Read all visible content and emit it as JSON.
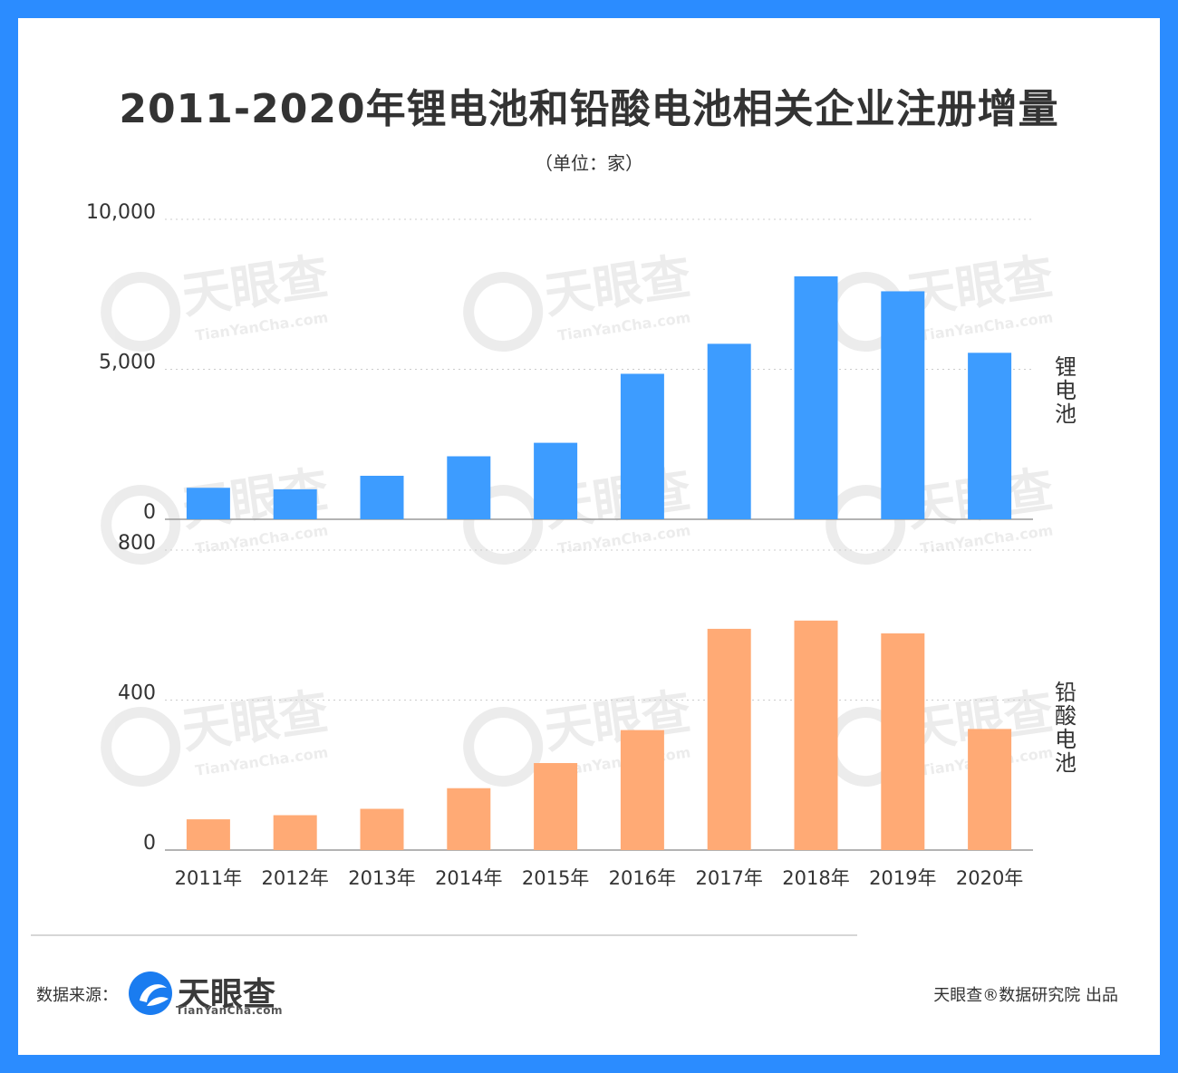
{
  "title": "2011-2020年锂电池和铅酸电池相关企业注册增量",
  "subtitle": "（单位：家）",
  "footer": {
    "source_label": "数据来源：",
    "logo_name": "天眼查",
    "logo_url": "TianYanCha.com",
    "credit": "天眼查®数据研究院 出品"
  },
  "watermark": {
    "name": "天眼查",
    "url": "TianYanCha.com"
  },
  "colors": {
    "background": "#2b8cff",
    "lithium": "#3d9cff",
    "lead_acid": "#ffaa75",
    "axis_text": "#333333",
    "grid": "#cccccc"
  },
  "chart_data": [
    {
      "type": "bar",
      "panel_label": "锂电池",
      "categories": [
        "2011年",
        "2012年",
        "2013年",
        "2014年",
        "2015年",
        "2016年",
        "2017年",
        "2018年",
        "2019年",
        "2020年"
      ],
      "values": [
        1050,
        1000,
        1450,
        2100,
        2550,
        4850,
        5850,
        8100,
        7600,
        5550
      ],
      "ylim": [
        0,
        10000
      ],
      "yticks": [
        0,
        5000,
        10000
      ],
      "ytick_labels": [
        "0",
        "5,000",
        "10,000"
      ],
      "color": "#3d9cff"
    },
    {
      "type": "bar",
      "panel_label": "铅酸电池",
      "categories": [
        "2011年",
        "2012年",
        "2013年",
        "2014年",
        "2015年",
        "2016年",
        "2017年",
        "2018年",
        "2019年",
        "2020年"
      ],
      "values": [
        82,
        93,
        110,
        165,
        232,
        320,
        590,
        612,
        578,
        323
      ],
      "ylim": [
        0,
        800
      ],
      "yticks": [
        0,
        400,
        800
      ],
      "ytick_labels": [
        "0",
        "400",
        "800"
      ],
      "color": "#ffaa75"
    }
  ]
}
